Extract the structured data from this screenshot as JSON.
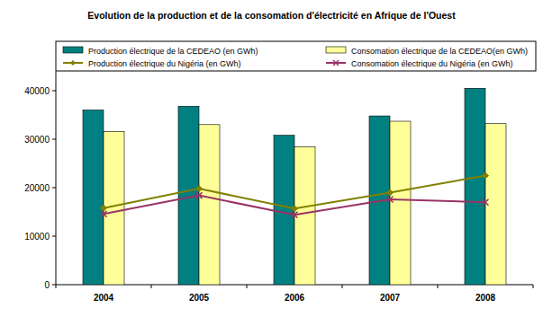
{
  "chart_data": {
    "type": "bar",
    "title": "Evolution de la production et de la consomation d'électricité en Afrique de l'Ouest",
    "categories": [
      "2004",
      "2005",
      "2006",
      "2007",
      "2008"
    ],
    "series": [
      {
        "name": "Production électrique de la CEDEAO (en GWh)",
        "type": "bar",
        "color": "#008080",
        "values": [
          36000,
          36800,
          30800,
          34800,
          40500
        ]
      },
      {
        "name": "Consomation électrique de la CEDEAO(en GWh)",
        "type": "bar",
        "color": "#ffff99",
        "values": [
          31600,
          33000,
          28400,
          33700,
          33200
        ]
      },
      {
        "name": "Production électrique du Nigéria (en GWh)",
        "type": "line",
        "color": "#808000",
        "marker": "diamond",
        "line_style": "solid",
        "values": [
          15800,
          19800,
          15700,
          19000,
          22500
        ]
      },
      {
        "name": "Consomation électrique du Nigéria (en GWh)",
        "type": "line",
        "color": "#993366",
        "marker": "x",
        "line_style": "solid",
        "values": [
          14600,
          18400,
          14400,
          17600,
          17000
        ]
      }
    ],
    "ylim": [
      0,
      44000
    ],
    "yticks": [
      0,
      10000,
      20000,
      30000,
      40000
    ],
    "grid": false,
    "legend": "top"
  }
}
